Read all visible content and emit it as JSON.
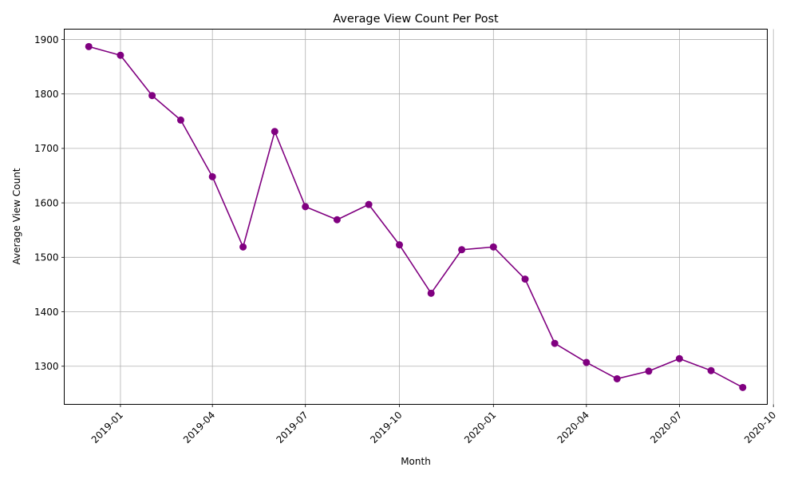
{
  "chart_data": {
    "type": "line",
    "title": "Average View Count Per Post",
    "xlabel": "Month",
    "ylabel": "Average View Count",
    "x": [
      "2018-12-01",
      "2019-01-01",
      "2019-02-01",
      "2019-03-01",
      "2019-04-01",
      "2019-05-01",
      "2019-06-01",
      "2019-07-01",
      "2019-08-01",
      "2019-09-01",
      "2019-10-01",
      "2019-11-01",
      "2019-12-01",
      "2020-01-01",
      "2020-02-01",
      "2020-03-01",
      "2020-04-01",
      "2020-05-01",
      "2020-06-01",
      "2020-07-01",
      "2020-08-01",
      "2020-09-01"
    ],
    "series": [
      {
        "values": [
          1887,
          1871,
          1797,
          1752,
          1648,
          1519,
          1731,
          1593,
          1569,
          1597,
          1523,
          1434,
          1514,
          1519,
          1460,
          1342,
          1307,
          1277,
          1291,
          1314,
          1292,
          1261
        ],
        "color": "#800080",
        "marker": "circle"
      }
    ],
    "xticks": [
      "2019-01",
      "2019-04",
      "2019-07",
      "2019-10",
      "2020-01",
      "2020-04",
      "2020-07",
      "2020-10"
    ],
    "xlim": [
      "2018-11-07",
      "2020-09-25"
    ],
    "yticks": [
      1300,
      1400,
      1500,
      1600,
      1700,
      1800,
      1900
    ],
    "ylim": [
      1230,
      1919
    ],
    "grid": true,
    "legend": "none",
    "xtick_rotation": 45
  }
}
